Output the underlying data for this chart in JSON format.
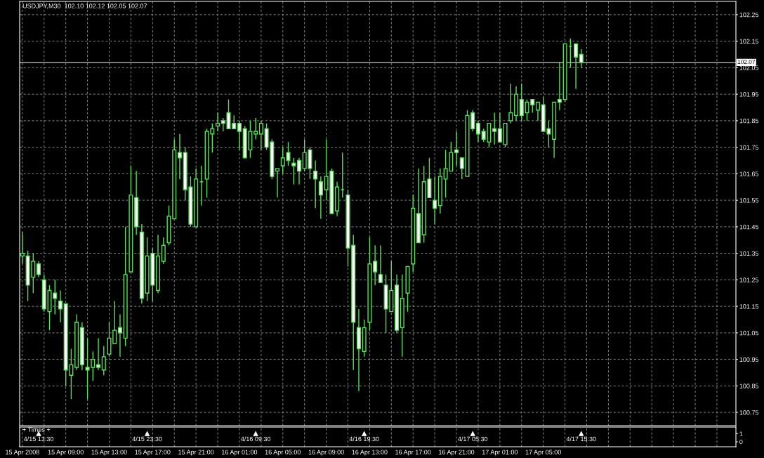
{
  "chart_data": [
    {
      "type": "candlestick",
      "title": "USDJPY,M30  102.10 102.12 102.05 102.07",
      "color": "#5ade5a",
      "grid": true,
      "categories": [
        "15 Apr 2008",
        null,
        null,
        null,
        null,
        null,
        null,
        null,
        "15 Apr 09:00",
        null,
        null,
        null,
        null,
        null,
        null,
        null,
        "15 Apr 13:00",
        null,
        null,
        null,
        null,
        null,
        null,
        null,
        "15 Apr 17:00",
        null,
        null,
        null,
        null,
        null,
        null,
        null,
        "15 Apr 21:00",
        null,
        null,
        null,
        null,
        null,
        null,
        null,
        "16 Apr 01:00",
        null,
        null,
        null,
        null,
        null,
        null,
        null,
        "16 Apr 05:00",
        null,
        null,
        null,
        null,
        null,
        null,
        null,
        "16 Apr 09:00",
        null,
        null,
        null,
        null,
        null,
        null,
        null,
        "16 Apr 13:00",
        null,
        null,
        null,
        null,
        null,
        null,
        null,
        "16 Apr 17:00",
        null,
        null,
        null,
        null,
        null,
        null,
        null,
        "16 Apr 21:00",
        null,
        null,
        null,
        null,
        null,
        null,
        null,
        "17 Apr 01:00",
        null,
        null,
        null,
        null,
        null,
        null,
        null,
        "17 Apr 05:00",
        null,
        null,
        null,
        null,
        null,
        null,
        null,
        null,
        null,
        null,
        null,
        null,
        null,
        null,
        null,
        null,
        null,
        null,
        null,
        null,
        null,
        null,
        null,
        null,
        null,
        null,
        null,
        null,
        null,
        null,
        null,
        null,
        null,
        null,
        null
      ],
      "ohlc": [
        [
          101.34,
          101.43,
          101.31,
          101.35
        ],
        [
          101.34,
          101.36,
          101.17,
          101.23
        ],
        [
          101.26,
          101.35,
          101.2,
          101.32
        ],
        [
          101.31,
          101.32,
          101.26,
          101.27
        ],
        [
          101.25,
          101.27,
          101.13,
          101.14
        ],
        [
          101.13,
          101.23,
          101.06,
          101.21
        ],
        [
          101.2,
          101.25,
          101.12,
          101.18
        ],
        [
          101.17,
          101.21,
          101.09,
          101.14
        ],
        [
          101.16,
          101.16,
          100.85,
          100.91
        ],
        [
          100.89,
          100.99,
          100.8,
          100.93
        ],
        [
          100.92,
          101.12,
          100.91,
          101.09
        ],
        [
          101.07,
          101.09,
          100.91,
          100.93
        ],
        [
          100.92,
          101.03,
          100.8,
          100.91
        ],
        [
          100.92,
          100.98,
          100.87,
          100.95
        ],
        [
          100.93,
          101.03,
          100.91,
          100.92
        ],
        [
          100.91,
          101.0,
          100.89,
          100.96
        ],
        [
          100.97,
          101.09,
          100.96,
          101.03
        ],
        [
          101.01,
          101.17,
          101.01,
          101.06
        ],
        [
          101.07,
          101.12,
          100.96,
          101.05
        ],
        [
          101.03,
          101.45,
          101.0,
          101.27
        ],
        [
          101.28,
          101.68,
          101.28,
          101.57
        ],
        [
          101.56,
          101.66,
          101.42,
          101.45
        ],
        [
          101.43,
          101.46,
          101.16,
          101.18
        ],
        [
          101.2,
          101.41,
          101.17,
          101.34
        ],
        [
          101.35,
          101.37,
          101.17,
          101.23
        ],
        [
          101.21,
          101.42,
          101.2,
          101.34
        ],
        [
          101.32,
          101.41,
          101.31,
          101.38
        ],
        [
          101.39,
          101.53,
          101.38,
          101.49
        ],
        [
          101.48,
          101.78,
          101.48,
          101.74
        ],
        [
          101.73,
          101.8,
          101.63,
          101.71
        ],
        [
          101.73,
          101.75,
          101.55,
          101.59
        ],
        [
          101.6,
          101.64,
          101.45,
          101.46
        ],
        [
          101.45,
          101.67,
          101.45,
          101.63
        ],
        [
          101.62,
          101.68,
          101.53,
          101.62
        ],
        [
          101.63,
          101.82,
          101.56,
          101.81
        ],
        [
          101.8,
          101.84,
          101.73,
          101.82
        ],
        [
          101.83,
          101.88,
          101.81,
          101.84
        ],
        [
          101.85,
          101.86,
          101.81,
          101.84
        ],
        [
          101.88,
          101.93,
          101.82,
          101.82
        ],
        [
          101.84,
          101.87,
          101.82,
          101.82
        ],
        [
          101.84,
          101.85,
          101.74,
          101.81
        ],
        [
          101.82,
          101.83,
          101.71,
          101.71
        ],
        [
          101.74,
          101.85,
          101.71,
          101.81
        ],
        [
          101.8,
          101.86,
          101.78,
          101.81
        ],
        [
          101.8,
          101.85,
          101.74,
          101.84
        ],
        [
          101.82,
          101.84,
          101.74,
          101.75
        ],
        [
          101.77,
          101.78,
          101.63,
          101.64
        ],
        [
          101.66,
          101.67,
          101.56,
          101.67
        ],
        [
          101.68,
          101.75,
          101.65,
          101.71
        ],
        [
          101.73,
          101.77,
          101.68,
          101.7
        ],
        [
          101.69,
          101.71,
          101.61,
          101.68
        ],
        [
          101.7,
          101.71,
          101.61,
          101.66
        ],
        [
          101.67,
          101.78,
          101.66,
          101.73
        ],
        [
          101.74,
          101.75,
          101.63,
          101.67
        ],
        [
          101.66,
          101.7,
          101.52,
          101.63
        ],
        [
          101.62,
          101.64,
          101.48,
          101.57
        ],
        [
          101.59,
          101.78,
          101.55,
          101.64
        ],
        [
          101.66,
          101.67,
          101.5,
          101.5
        ],
        [
          101.51,
          101.62,
          101.49,
          101.6
        ],
        [
          101.59,
          101.73,
          101.56,
          101.59
        ],
        [
          101.57,
          101.59,
          101.3,
          101.37
        ],
        [
          101.38,
          101.42,
          100.91,
          101.09
        ],
        [
          101.07,
          101.14,
          100.83,
          100.99
        ],
        [
          100.98,
          101.1,
          100.96,
          101.07
        ],
        [
          101.09,
          101.41,
          101.06,
          101.31
        ],
        [
          101.32,
          101.38,
          101.23,
          101.28
        ],
        [
          101.27,
          101.38,
          101.24,
          101.24
        ],
        [
          101.23,
          101.27,
          101.05,
          101.14
        ],
        [
          101.13,
          101.32,
          101.13,
          101.21
        ],
        [
          101.23,
          101.27,
          101.05,
          101.06
        ],
        [
          101.07,
          101.27,
          100.96,
          101.18
        ],
        [
          101.2,
          101.3,
          101.13,
          101.3
        ],
        [
          101.31,
          101.57,
          101.28,
          101.52
        ],
        [
          101.5,
          101.67,
          101.39,
          101.39
        ],
        [
          101.42,
          101.68,
          101.39,
          101.62
        ],
        [
          101.63,
          101.71,
          101.56,
          101.56
        ],
        [
          101.55,
          101.64,
          101.46,
          101.52
        ],
        [
          101.53,
          101.67,
          101.5,
          101.64
        ],
        [
          101.63,
          101.74,
          101.56,
          101.67
        ],
        [
          101.66,
          101.77,
          101.66,
          101.73
        ],
        [
          101.74,
          101.81,
          101.68,
          101.73
        ],
        [
          101.71,
          101.71,
          101.63,
          101.67
        ],
        [
          101.64,
          101.89,
          101.64,
          101.87
        ],
        [
          101.88,
          101.89,
          101.81,
          101.82
        ],
        [
          101.84,
          101.85,
          101.77,
          101.8
        ],
        [
          101.81,
          101.82,
          101.77,
          101.78
        ],
        [
          101.77,
          101.84,
          101.75,
          101.84
        ],
        [
          101.82,
          101.88,
          101.76,
          101.81
        ],
        [
          101.82,
          101.88,
          101.77,
          101.77
        ],
        [
          101.76,
          101.84,
          101.75,
          101.84
        ],
        [
          101.85,
          101.99,
          101.84,
          101.88
        ],
        [
          101.87,
          101.98,
          101.85,
          101.95
        ],
        [
          101.93,
          101.99,
          101.85,
          101.87
        ],
        [
          101.88,
          101.93,
          101.85,
          101.92
        ],
        [
          101.93,
          101.93,
          101.88,
          101.91
        ],
        [
          101.89,
          101.92,
          101.85,
          101.92
        ],
        [
          101.91,
          101.94,
          101.81,
          101.81
        ],
        [
          101.82,
          101.85,
          101.75,
          101.8
        ],
        [
          101.78,
          101.92,
          101.71,
          101.92
        ],
        [
          101.93,
          102.07,
          101.89,
          101.92
        ],
        [
          101.93,
          102.14,
          101.92,
          102.14
        ],
        [
          102.13,
          102.16,
          102.05,
          102.13
        ],
        [
          102.14,
          102.14,
          101.97,
          102.09
        ],
        [
          102.1,
          102.12,
          102.05,
          102.07
        ],
        null,
        null,
        null,
        null,
        null,
        null,
        null,
        null,
        null,
        null,
        null,
        null,
        null,
        null,
        null,
        null,
        null,
        null,
        null,
        null,
        null,
        null,
        null,
        null,
        null,
        null,
        null,
        null
      ],
      "ylim": [
        100.7,
        102.3
      ],
      "yticks": [
        100.75,
        100.85,
        100.95,
        101.05,
        101.15,
        101.25,
        101.35,
        101.45,
        101.55,
        101.65,
        101.75,
        101.85,
        101.95,
        102.05,
        102.15,
        102.25
      ],
      "ref_lines": [
        {
          "axis": "y",
          "value": 102.07,
          "label": "102.07",
          "color": "#c8c8c8",
          "line_style": "solid"
        }
      ]
    },
    {
      "type": "scatter",
      "title": "+ Times +",
      "marker": "triangle",
      "color": "#ffffff",
      "grid": "x",
      "tick_labels": "y",
      "categories": [
        null,
        null,
        null,
        null,
        null,
        null,
        null,
        null,
        null,
        null,
        null,
        null,
        null,
        null,
        null,
        null,
        null,
        null,
        null,
        null,
        null,
        null,
        null,
        null,
        null,
        null,
        null,
        null,
        null,
        null,
        null,
        null,
        null,
        null,
        null,
        null,
        null,
        null,
        null,
        null,
        null,
        null,
        null,
        null,
        null,
        null,
        null,
        null,
        null,
        null,
        null,
        null,
        null,
        null,
        null,
        null,
        null,
        null,
        null,
        null,
        null,
        null,
        null,
        null,
        null,
        null,
        null,
        null,
        null,
        null,
        null,
        null,
        null,
        null,
        null,
        null,
        null,
        null,
        null,
        null,
        null,
        null,
        null,
        null,
        null,
        null,
        null,
        null,
        null,
        null,
        null,
        null,
        null,
        null,
        null,
        null,
        null,
        null,
        null,
        null,
        null,
        null,
        null,
        null,
        null,
        null,
        null,
        null,
        null,
        null,
        null,
        null,
        null,
        null,
        null,
        null,
        null,
        null,
        null,
        null,
        null,
        null,
        null,
        null,
        null,
        null,
        null,
        null,
        null,
        null,
        null,
        null
      ],
      "values": [
        null,
        null,
        null,
        1,
        null,
        null,
        null,
        null,
        null,
        null,
        null,
        null,
        null,
        null,
        null,
        null,
        null,
        null,
        null,
        null,
        null,
        null,
        null,
        1,
        null,
        null,
        null,
        null,
        null,
        null,
        null,
        null,
        null,
        null,
        null,
        null,
        null,
        null,
        null,
        null,
        null,
        null,
        null,
        1,
        null,
        null,
        null,
        null,
        null,
        null,
        null,
        null,
        null,
        null,
        null,
        null,
        null,
        null,
        null,
        null,
        null,
        null,
        null,
        1,
        null,
        null,
        null,
        null,
        null,
        null,
        null,
        null,
        null,
        null,
        null,
        null,
        null,
        null,
        null,
        null,
        null,
        null,
        null,
        1,
        null,
        null,
        null,
        null,
        null,
        null,
        null,
        null,
        null,
        null,
        null,
        null,
        null,
        null,
        null,
        null,
        null,
        null,
        null,
        1,
        null,
        null,
        null,
        null,
        null,
        null,
        null,
        null,
        null,
        null,
        null,
        null,
        null,
        null,
        null,
        null,
        null,
        null,
        null,
        null,
        null,
        null,
        null,
        null,
        null,
        null,
        null,
        null
      ],
      "annotations": [
        "4/15 13:30",
        "4/15 23:30",
        "4/16 09:30",
        "4/16 19:30",
        "4/17 05:30",
        "4/17 15:30"
      ],
      "ylim": [
        -0.6,
        1.8
      ],
      "yticks": [
        0,
        1
      ]
    }
  ]
}
